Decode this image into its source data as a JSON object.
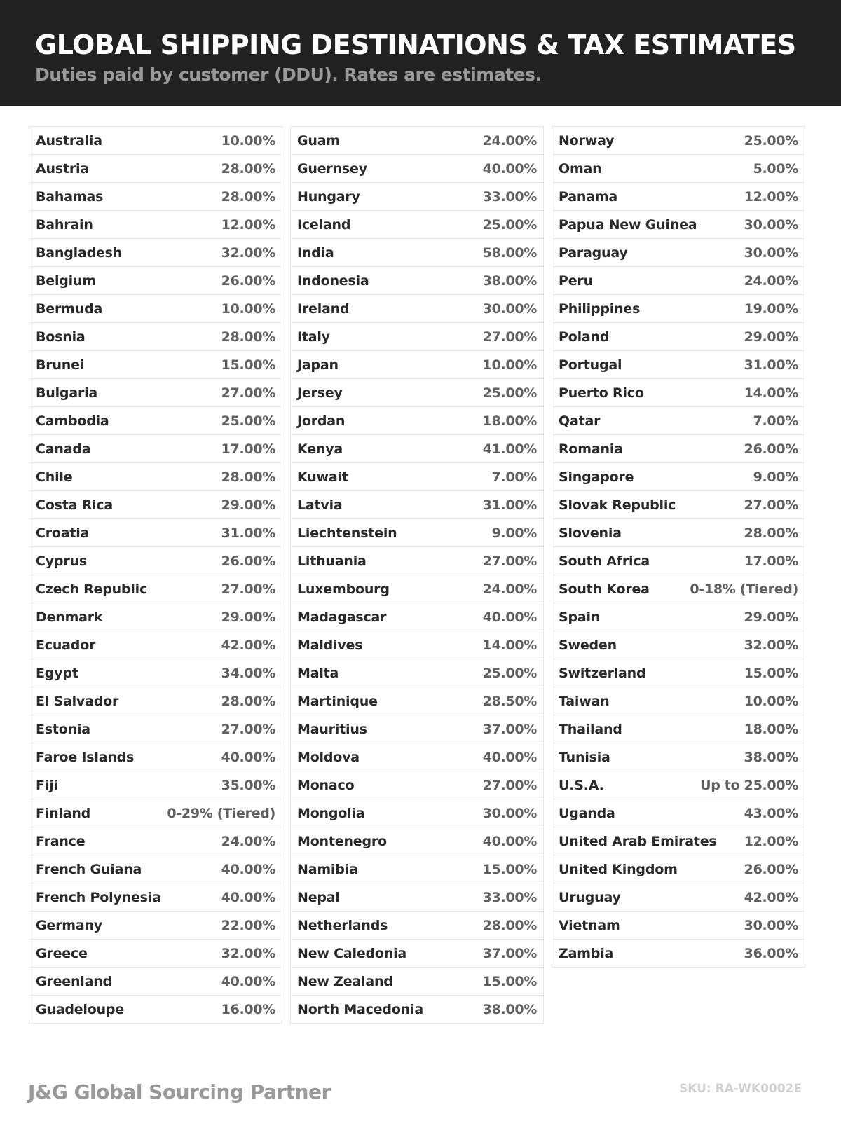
{
  "header": {
    "title": "GLOBAL SHIPPING DESTINATIONS & TAX ESTIMATES",
    "subtitle": "Duties paid by customer (DDU). Rates are estimates."
  },
  "columns": [
    [
      [
        "Australia",
        "10.00%"
      ],
      [
        "Austria",
        "28.00%"
      ],
      [
        "Bahamas",
        "28.00%"
      ],
      [
        "Bahrain",
        "12.00%"
      ],
      [
        "Bangladesh",
        "32.00%"
      ],
      [
        "Belgium",
        "26.00%"
      ],
      [
        "Bermuda",
        "10.00%"
      ],
      [
        "Bosnia",
        "28.00%"
      ],
      [
        "Brunei",
        "15.00%"
      ],
      [
        "Bulgaria",
        "27.00%"
      ],
      [
        "Cambodia",
        "25.00%"
      ],
      [
        "Canada",
        "17.00%"
      ],
      [
        "Chile",
        "28.00%"
      ],
      [
        "Costa Rica",
        "29.00%"
      ],
      [
        "Croatia",
        "31.00%"
      ],
      [
        "Cyprus",
        "26.00%"
      ],
      [
        "Czech Republic",
        "27.00%"
      ],
      [
        "Denmark",
        "29.00%"
      ],
      [
        "Ecuador",
        "42.00%"
      ],
      [
        "Egypt",
        "34.00%"
      ],
      [
        "El Salvador",
        "28.00%"
      ],
      [
        "Estonia",
        "27.00%"
      ],
      [
        "Faroe Islands",
        "40.00%"
      ],
      [
        "Fiji",
        "35.00%"
      ],
      [
        "Finland",
        "0-29% (Tiered)"
      ],
      [
        "France",
        "24.00%"
      ],
      [
        "French Guiana",
        "40.00%"
      ],
      [
        "French Polynesia",
        "40.00%"
      ],
      [
        "Germany",
        "22.00%"
      ],
      [
        "Greece",
        "32.00%"
      ],
      [
        "Greenland",
        "40.00%"
      ],
      [
        "Guadeloupe",
        "16.00%"
      ]
    ],
    [
      [
        "Guam",
        "24.00%"
      ],
      [
        "Guernsey",
        "40.00%"
      ],
      [
        "Hungary",
        "33.00%"
      ],
      [
        "Iceland",
        "25.00%"
      ],
      [
        "India",
        "58.00%"
      ],
      [
        "Indonesia",
        "38.00%"
      ],
      [
        "Ireland",
        "30.00%"
      ],
      [
        "Italy",
        "27.00%"
      ],
      [
        "Japan",
        "10.00%"
      ],
      [
        "Jersey",
        "25.00%"
      ],
      [
        "Jordan",
        "18.00%"
      ],
      [
        "Kenya",
        "41.00%"
      ],
      [
        "Kuwait",
        "7.00%"
      ],
      [
        "Latvia",
        "31.00%"
      ],
      [
        "Liechtenstein",
        "9.00%"
      ],
      [
        "Lithuania",
        "27.00%"
      ],
      [
        "Luxembourg",
        "24.00%"
      ],
      [
        "Madagascar",
        "40.00%"
      ],
      [
        "Maldives",
        "14.00%"
      ],
      [
        "Malta",
        "25.00%"
      ],
      [
        "Martinique",
        "28.50%"
      ],
      [
        "Mauritius",
        "37.00%"
      ],
      [
        "Moldova",
        "40.00%"
      ],
      [
        "Monaco",
        "27.00%"
      ],
      [
        "Mongolia",
        "30.00%"
      ],
      [
        "Montenegro",
        "40.00%"
      ],
      [
        "Namibia",
        "15.00%"
      ],
      [
        "Nepal",
        "33.00%"
      ],
      [
        "Netherlands",
        "28.00%"
      ],
      [
        "New Caledonia",
        "37.00%"
      ],
      [
        "New Zealand",
        "15.00%"
      ],
      [
        "North Macedonia",
        "38.00%"
      ]
    ],
    [
      [
        "Norway",
        "25.00%"
      ],
      [
        "Oman",
        "5.00%"
      ],
      [
        "Panama",
        "12.00%"
      ],
      [
        "Papua New Guinea",
        "30.00%"
      ],
      [
        "Paraguay",
        "30.00%"
      ],
      [
        "Peru",
        "24.00%"
      ],
      [
        "Philippines",
        "19.00%"
      ],
      [
        "Poland",
        "29.00%"
      ],
      [
        "Portugal",
        "31.00%"
      ],
      [
        "Puerto Rico",
        "14.00%"
      ],
      [
        "Qatar",
        "7.00%"
      ],
      [
        "Romania",
        "26.00%"
      ],
      [
        "Singapore",
        "9.00%"
      ],
      [
        "Slovak Republic",
        "27.00%"
      ],
      [
        "Slovenia",
        "28.00%"
      ],
      [
        "South Africa",
        "17.00%"
      ],
      [
        "South Korea",
        "0-18% (Tiered)"
      ],
      [
        "Spain",
        "29.00%"
      ],
      [
        "Sweden",
        "32.00%"
      ],
      [
        "Switzerland",
        "15.00%"
      ],
      [
        "Taiwan",
        "10.00%"
      ],
      [
        "Thailand",
        "18.00%"
      ],
      [
        "Tunisia",
        "38.00%"
      ],
      [
        "U.S.A.",
        "Up to 25.00%"
      ],
      [
        "Uganda",
        "43.00%"
      ],
      [
        "United Arab Emirates",
        "12.00%"
      ],
      [
        "United Kingdom",
        "26.00%"
      ],
      [
        "Uruguay",
        "42.00%"
      ],
      [
        "Vietnam",
        "30.00%"
      ],
      [
        "Zambia",
        "36.00%"
      ]
    ]
  ],
  "footer": {
    "brand": "J&G Global Sourcing Partner",
    "sku": "SKU: RA-WK0002E"
  }
}
